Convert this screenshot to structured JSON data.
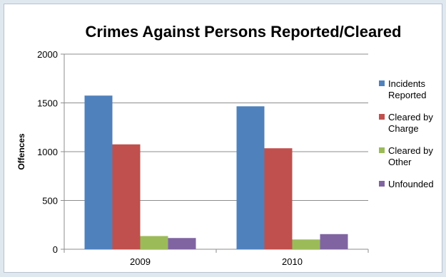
{
  "chart_data": {
    "type": "bar",
    "title": "Crimes Against Persons Reported/Cleared",
    "xlabel": "",
    "ylabel": "Offences",
    "ylim": [
      0,
      2000
    ],
    "yticks": [
      0,
      500,
      1000,
      1500,
      2000
    ],
    "grid": true,
    "legend": "right",
    "categories": [
      "2009",
      "2010"
    ],
    "series": [
      {
        "name": "Incidents Reported",
        "color": "#4f81bd",
        "values": [
          1575,
          1465
        ]
      },
      {
        "name": "Cleared by Charge",
        "color": "#c0504d",
        "values": [
          1075,
          1035
        ]
      },
      {
        "name": "Cleared by Other",
        "color": "#9bbb59",
        "values": [
          135,
          100
        ]
      },
      {
        "name": "Unfounded",
        "color": "#8064a2",
        "values": [
          115,
          155
        ]
      }
    ]
  }
}
